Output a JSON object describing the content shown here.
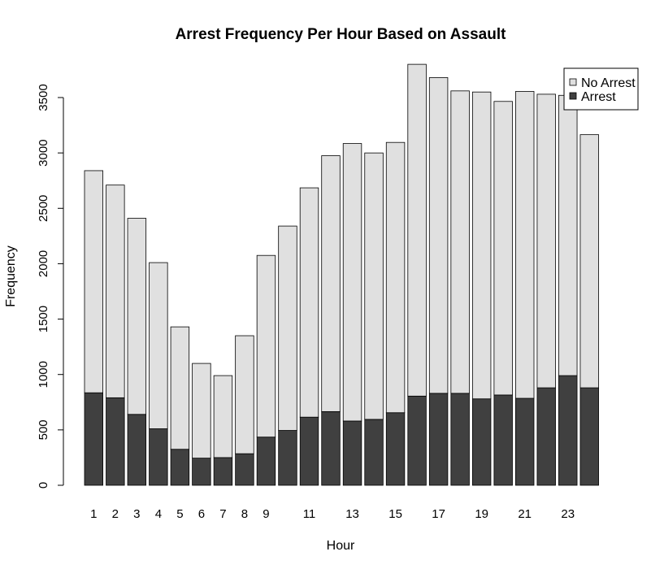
{
  "chart_data": {
    "type": "bar",
    "stacked": true,
    "title": "Arrest Frequency Per Hour Based on Assault",
    "xlabel": "Hour",
    "ylabel": "Frequency",
    "ylim": [
      0,
      3800
    ],
    "yticks": [
      0,
      500,
      1000,
      1500,
      2000,
      2500,
      3000,
      3500
    ],
    "categories": [
      "1",
      "2",
      "3",
      "4",
      "5",
      "6",
      "7",
      "8",
      "9",
      "10",
      "11",
      "12",
      "13",
      "14",
      "15",
      "16",
      "17",
      "18",
      "19",
      "20",
      "21",
      "22",
      "23",
      "24"
    ],
    "shown_xtick_labels": [
      "1",
      "2",
      "3",
      "4",
      "5",
      "6",
      "7",
      "8",
      "9",
      "",
      "11",
      "",
      "13",
      "",
      "15",
      "",
      "17",
      "",
      "19",
      "",
      "21",
      "",
      "23",
      ""
    ],
    "series": [
      {
        "name": "Arrest",
        "color": "#404040",
        "values": [
          835,
          790,
          640,
          510,
          325,
          245,
          250,
          285,
          435,
          495,
          615,
          665,
          580,
          595,
          655,
          805,
          830,
          830,
          780,
          815,
          785,
          880,
          990,
          880
        ]
      },
      {
        "name": "No Arrest",
        "color": "#e0e0e0",
        "values": [
          2005,
          1920,
          1770,
          1500,
          1105,
          855,
          740,
          1065,
          1640,
          1845,
          2070,
          2310,
          2505,
          2405,
          2440,
          2995,
          2850,
          2730,
          2770,
          2650,
          2770,
          2650,
          2530,
          2285
        ]
      }
    ],
    "legend": {
      "position": "top-right",
      "entries": [
        {
          "label": "No Arrest",
          "color": "#e0e0e0"
        },
        {
          "label": "Arrest",
          "color": "#404040"
        }
      ]
    },
    "grid": false
  }
}
